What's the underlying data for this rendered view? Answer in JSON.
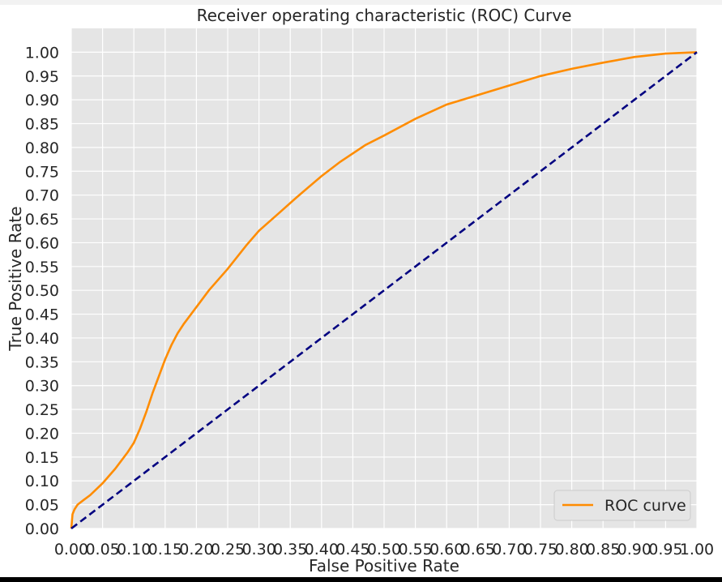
{
  "chart_data": {
    "type": "line",
    "title": "Receiver operating characteristic (ROC) Curve",
    "xlabel": "False Positive Rate",
    "ylabel": "True Positive Rate",
    "xlim": [
      0.0,
      1.0
    ],
    "ylim": [
      0.0,
      1.05
    ],
    "xticks": [
      "0.00",
      "0.05",
      "0.10",
      "0.15",
      "0.20",
      "0.25",
      "0.30",
      "0.35",
      "0.40",
      "0.45",
      "0.50",
      "0.55",
      "0.60",
      "0.65",
      "0.70",
      "0.75",
      "0.80",
      "0.85",
      "0.90",
      "0.95",
      "1.00"
    ],
    "yticks": [
      "0.00",
      "0.05",
      "0.10",
      "0.15",
      "0.20",
      "0.25",
      "0.30",
      "0.35",
      "0.40",
      "0.45",
      "0.50",
      "0.55",
      "0.60",
      "0.65",
      "0.70",
      "0.75",
      "0.80",
      "0.85",
      "0.90",
      "0.95",
      "1.00"
    ],
    "grid": true,
    "legend": {
      "position": "bottom-right"
    },
    "colors": {
      "background": "#e5e5e5",
      "grid": "#ffffff"
    },
    "series": [
      {
        "name": "ROC curve",
        "color": "#ff8c00",
        "style": "solid",
        "x": [
          0.0,
          0.002,
          0.005,
          0.01,
          0.02,
          0.03,
          0.05,
          0.07,
          0.09,
          0.1,
          0.11,
          0.12,
          0.13,
          0.14,
          0.15,
          0.16,
          0.17,
          0.18,
          0.2,
          0.22,
          0.25,
          0.28,
          0.3,
          0.33,
          0.36,
          0.4,
          0.43,
          0.47,
          0.5,
          0.55,
          0.6,
          0.65,
          0.7,
          0.75,
          0.8,
          0.85,
          0.9,
          0.95,
          1.0
        ],
        "y": [
          0.0,
          0.03,
          0.04,
          0.05,
          0.06,
          0.07,
          0.095,
          0.125,
          0.16,
          0.18,
          0.21,
          0.245,
          0.285,
          0.32,
          0.355,
          0.385,
          0.41,
          0.43,
          0.465,
          0.5,
          0.545,
          0.595,
          0.625,
          0.66,
          0.695,
          0.74,
          0.77,
          0.805,
          0.825,
          0.86,
          0.89,
          0.91,
          0.93,
          0.95,
          0.965,
          0.978,
          0.99,
          0.997,
          1.0
        ]
      },
      {
        "name": "",
        "color": "#000080",
        "style": "dashed",
        "x": [
          0.0,
          1.0
        ],
        "y": [
          0.0,
          1.0
        ]
      }
    ]
  }
}
